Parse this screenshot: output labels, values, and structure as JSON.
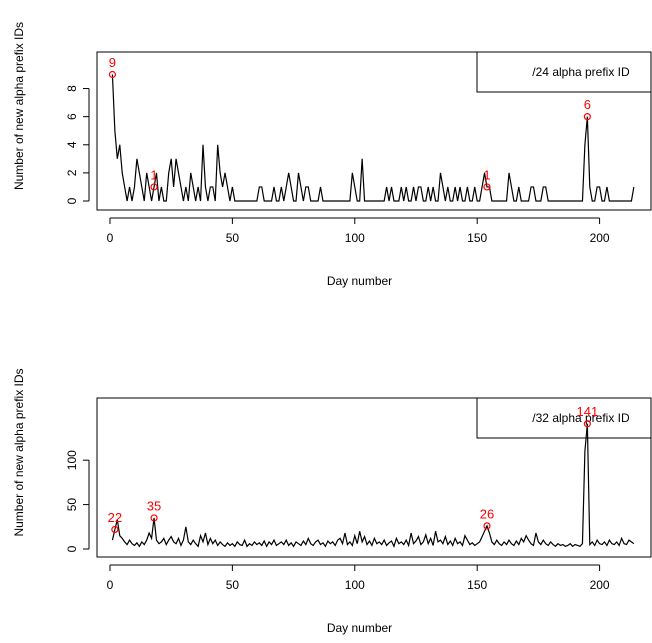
{
  "chart_data": [
    {
      "type": "line",
      "xlabel": "Day number",
      "ylabel": "Number of new alpha prefix IDs",
      "legend": "top-right",
      "annotation_color": "#ff0000",
      "xlim": [
        -5.3,
        221
      ],
      "ylim": [
        -0.64,
        10.6
      ],
      "xticks": [
        0,
        50,
        100,
        150,
        200
      ],
      "yticks": [
        0,
        2,
        4,
        6,
        8
      ],
      "x": [
        1,
        2,
        3,
        4,
        5,
        6,
        7,
        8,
        9,
        10,
        11,
        12,
        13,
        14,
        15,
        16,
        17,
        18,
        19,
        20,
        21,
        22,
        23,
        24,
        25,
        26,
        27,
        28,
        29,
        30,
        31,
        32,
        33,
        34,
        35,
        36,
        37,
        38,
        39,
        40,
        41,
        42,
        43,
        44,
        45,
        46,
        47,
        48,
        49,
        50,
        51,
        52,
        53,
        54,
        55,
        56,
        57,
        58,
        59,
        60,
        61,
        62,
        63,
        64,
        65,
        66,
        67,
        68,
        69,
        70,
        71,
        72,
        73,
        74,
        75,
        76,
        77,
        78,
        79,
        80,
        81,
        82,
        83,
        84,
        85,
        86,
        87,
        88,
        89,
        90,
        91,
        92,
        93,
        94,
        95,
        96,
        97,
        98,
        99,
        100,
        101,
        102,
        103,
        104,
        105,
        106,
        107,
        108,
        109,
        110,
        111,
        112,
        113,
        114,
        115,
        116,
        117,
        118,
        119,
        120,
        121,
        122,
        123,
        124,
        125,
        126,
        127,
        128,
        129,
        130,
        131,
        132,
        133,
        134,
        135,
        136,
        137,
        138,
        139,
        140,
        141,
        142,
        143,
        144,
        145,
        146,
        147,
        148,
        149,
        150,
        151,
        152,
        153,
        154,
        155,
        156,
        157,
        158,
        159,
        160,
        161,
        162,
        163,
        164,
        165,
        166,
        167,
        168,
        169,
        170,
        171,
        172,
        173,
        174,
        175,
        176,
        177,
        178,
        179,
        180,
        181,
        182,
        183,
        184,
        185,
        186,
        187,
        188,
        189,
        190,
        191,
        192,
        193,
        194,
        195,
        196,
        197,
        198,
        199,
        200,
        201,
        202,
        203,
        204,
        205,
        206,
        207,
        208,
        209,
        210,
        211,
        212,
        213,
        214
      ],
      "series": [
        {
          "name": "/24 alpha prefix ID",
          "color": "#000000",
          "values": [
            9,
            5,
            3,
            4,
            2,
            1,
            0,
            1,
            0,
            1,
            3,
            2,
            1,
            0,
            2,
            1,
            0,
            1,
            2,
            0,
            1,
            0,
            0,
            2,
            3,
            1,
            3,
            2,
            1,
            0,
            1,
            0,
            2,
            1,
            0,
            1,
            0,
            4,
            1,
            0,
            1,
            1,
            0,
            4,
            2,
            1,
            2,
            1,
            0,
            1,
            0,
            0,
            0,
            0,
            0,
            0,
            0,
            0,
            0,
            0,
            1,
            1,
            0,
            0,
            0,
            0,
            1,
            0,
            0,
            1,
            0,
            1,
            2,
            1,
            0,
            0,
            2,
            1,
            0,
            1,
            1,
            0,
            0,
            0,
            0,
            1,
            0,
            0,
            0,
            0,
            0,
            0,
            0,
            0,
            0,
            0,
            0,
            0,
            2,
            1,
            0,
            0,
            3,
            0,
            0,
            0,
            0,
            0,
            0,
            0,
            0,
            0,
            1,
            0,
            1,
            0,
            0,
            0,
            1,
            0,
            1,
            0,
            0,
            1,
            0,
            1,
            1,
            0,
            0,
            1,
            0,
            1,
            0,
            0,
            2,
            1,
            0,
            1,
            0,
            0,
            1,
            0,
            1,
            0,
            0,
            1,
            0,
            0,
            1,
            0,
            0,
            1,
            2,
            1,
            1,
            0,
            0,
            0,
            0,
            0,
            0,
            0,
            2,
            1,
            0,
            0,
            1,
            0,
            0,
            0,
            0,
            1,
            1,
            0,
            0,
            0,
            1,
            1,
            0,
            0,
            0,
            0,
            0,
            0,
            0,
            0,
            0,
            0,
            0,
            0,
            0,
            0,
            0,
            4,
            6,
            1,
            0,
            0,
            1,
            1,
            0,
            0,
            1,
            0,
            0,
            0,
            0,
            0,
            0,
            0,
            0,
            0,
            0,
            1
          ]
        }
      ],
      "annotations": [
        {
          "x": 1,
          "y": 9
        },
        {
          "x": 18,
          "y": 1
        },
        {
          "x": 154,
          "y": 1
        },
        {
          "x": 195,
          "y": 6
        }
      ]
    },
    {
      "type": "line",
      "xlabel": "Day number",
      "ylabel": "Number of new alpha prefix IDs",
      "legend": "top-right",
      "annotation_color": "#ff0000",
      "xlim": [
        -5.3,
        221
      ],
      "ylim": [
        -9,
        170
      ],
      "xticks": [
        0,
        50,
        100,
        150,
        200
      ],
      "yticks": [
        0,
        50,
        100
      ],
      "x": [
        1,
        2,
        3,
        4,
        5,
        6,
        7,
        8,
        9,
        10,
        11,
        12,
        13,
        14,
        15,
        16,
        17,
        18,
        19,
        20,
        21,
        22,
        23,
        24,
        25,
        26,
        27,
        28,
        29,
        30,
        31,
        32,
        33,
        34,
        35,
        36,
        37,
        38,
        39,
        40,
        41,
        42,
        43,
        44,
        45,
        46,
        47,
        48,
        49,
        50,
        51,
        52,
        53,
        54,
        55,
        56,
        57,
        58,
        59,
        60,
        61,
        62,
        63,
        64,
        65,
        66,
        67,
        68,
        69,
        70,
        71,
        72,
        73,
        74,
        75,
        76,
        77,
        78,
        79,
        80,
        81,
        82,
        83,
        84,
        85,
        86,
        87,
        88,
        89,
        90,
        91,
        92,
        93,
        94,
        95,
        96,
        97,
        98,
        99,
        100,
        101,
        102,
        103,
        104,
        105,
        106,
        107,
        108,
        109,
        110,
        111,
        112,
        113,
        114,
        115,
        116,
        117,
        118,
        119,
        120,
        121,
        122,
        123,
        124,
        125,
        126,
        127,
        128,
        129,
        130,
        131,
        132,
        133,
        134,
        135,
        136,
        137,
        138,
        139,
        140,
        141,
        142,
        143,
        144,
        145,
        146,
        147,
        148,
        149,
        150,
        151,
        152,
        153,
        154,
        155,
        156,
        157,
        158,
        159,
        160,
        161,
        162,
        163,
        164,
        165,
        166,
        167,
        168,
        169,
        170,
        171,
        172,
        173,
        174,
        175,
        176,
        177,
        178,
        179,
        180,
        181,
        182,
        183,
        184,
        185,
        186,
        187,
        188,
        189,
        190,
        191,
        192,
        193,
        194,
        195,
        196,
        197,
        198,
        199,
        200,
        201,
        202,
        203,
        204,
        205,
        206,
        207,
        208,
        209,
        210,
        211,
        212,
        213,
        214
      ],
      "series": [
        {
          "name": "/32 alpha prefix ID",
          "color": "#000000",
          "values": [
            10,
            22,
            33,
            15,
            12,
            8,
            5,
            10,
            6,
            4,
            7,
            3,
            8,
            5,
            10,
            18,
            12,
            35,
            10,
            6,
            8,
            12,
            5,
            10,
            14,
            8,
            6,
            12,
            4,
            10,
            25,
            8,
            5,
            10,
            6,
            3,
            15,
            8,
            18,
            5,
            12,
            6,
            10,
            4,
            8,
            5,
            3,
            7,
            4,
            6,
            3,
            8,
            5,
            4,
            10,
            3,
            6,
            4,
            8,
            5,
            7,
            4,
            9,
            3,
            8,
            5,
            10,
            4,
            6,
            8,
            5,
            10,
            4,
            7,
            3,
            8,
            6,
            4,
            9,
            5,
            12,
            6,
            4,
            8,
            10,
            5,
            7,
            3,
            9,
            6,
            8,
            4,
            10,
            12,
            6,
            18,
            5,
            8,
            4,
            15,
            6,
            20,
            8,
            14,
            5,
            9,
            4,
            12,
            6,
            8,
            5,
            10,
            4,
            7,
            9,
            3,
            12,
            6,
            8,
            5,
            10,
            4,
            18,
            6,
            9,
            14,
            5,
            8,
            16,
            6,
            12,
            4,
            20,
            8,
            10,
            6,
            14,
            5,
            9,
            4,
            12,
            6,
            8,
            4,
            15,
            10,
            5,
            7,
            4,
            6,
            8,
            14,
            20,
            26,
            18,
            8,
            5,
            10,
            6,
            4,
            8,
            5,
            10,
            6,
            4,
            9,
            5,
            12,
            8,
            15,
            10,
            6,
            4,
            18,
            8,
            5,
            10,
            6,
            4,
            8,
            5,
            3,
            6,
            4,
            5,
            3,
            4,
            6,
            3,
            5,
            4,
            3,
            6,
            110,
            141,
            5,
            8,
            4,
            10,
            6,
            5,
            8,
            4,
            10,
            6,
            5,
            8,
            4,
            12,
            6,
            5,
            10,
            8,
            6
          ]
        }
      ],
      "annotations": [
        {
          "x": 2,
          "y": 22
        },
        {
          "x": 18,
          "y": 35
        },
        {
          "x": 154,
          "y": 26
        },
        {
          "x": 195,
          "y": 141
        }
      ]
    }
  ]
}
